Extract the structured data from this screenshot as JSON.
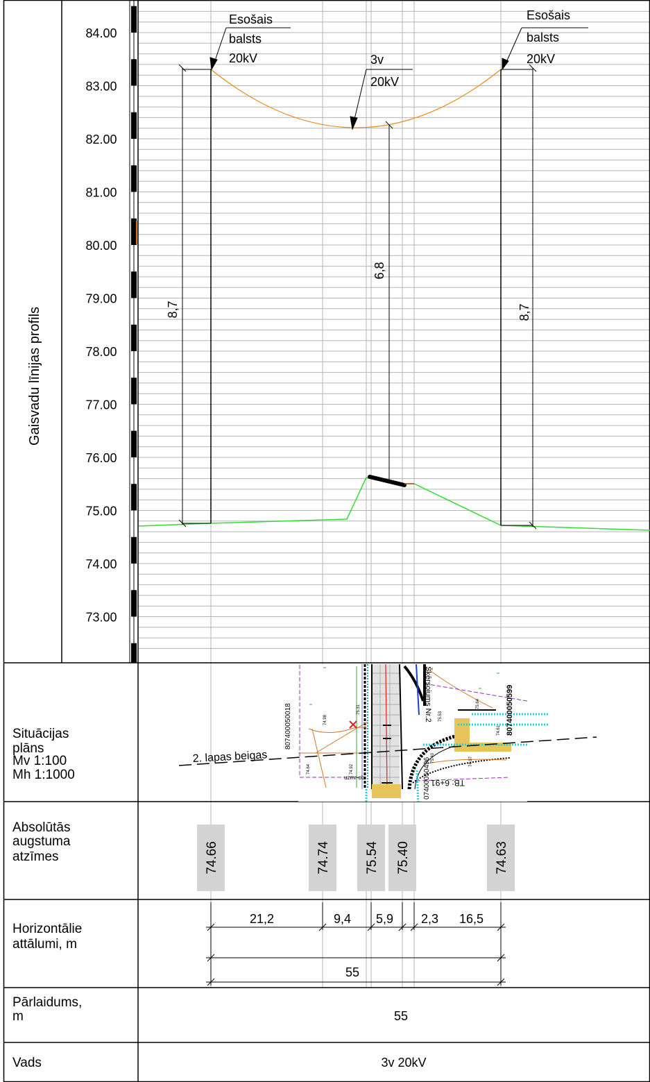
{
  "profile_title": "Gaisvadu līnijas profils",
  "elevation_ticks": [
    "84.00",
    "83.00",
    "82.00",
    "81.00",
    "80.00",
    "79.00",
    "78.00",
    "77.00",
    "76.00",
    "75.00",
    "74.00",
    "73.00"
  ],
  "callouts": {
    "left_pole": [
      "Esošais",
      "balsts",
      "20kV"
    ],
    "right_pole": [
      "Esošais",
      "balsts",
      "20kV"
    ],
    "line": [
      "3v",
      "20kV"
    ]
  },
  "clearances": {
    "left": "8,7",
    "middle": "6,8",
    "right": "8,7"
  },
  "plan": {
    "label": [
      "Situācijas",
      "plāns",
      "Mv 1:100",
      "Mh 1:1000"
    ],
    "sheet_end": "2. lapas beigas",
    "crossing": "Šķērsojums Nr.2",
    "parcel_a": "807400050018",
    "parcel_b": "807400050599",
    "parcel_c": "07400050496",
    "station": "TB: 6+91",
    "road_label": "uzmr-ob",
    "road_values": [
      "75.31",
      "75.64",
      "75.53",
      "74.64",
      "74.92",
      "75.40",
      "74.97",
      "74.98",
      "74.61"
    ]
  },
  "elev_row": {
    "label": [
      "Absolūtās",
      "augstuma",
      "atzīmes"
    ],
    "values": [
      "74.66",
      "74.74",
      "75.54",
      "75.40",
      "74.63"
    ]
  },
  "dist_row": {
    "label": [
      "Horizontālie",
      "attālumi, m"
    ],
    "segments": [
      "21,2",
      "9,4",
      "5,9",
      "2,3",
      "16,5"
    ],
    "total": "55"
  },
  "span_row": {
    "label": [
      "Pārlaidums,",
      "m"
    ],
    "value": "55"
  },
  "wire_row": {
    "label": "Vads",
    "value": "3v 20kV"
  },
  "colors": {
    "conductor": "#f08a1a",
    "ground": "#33dd33",
    "grid": "#b4b4b4",
    "ink": "#000000",
    "tag": "#d3d3d3"
  }
}
